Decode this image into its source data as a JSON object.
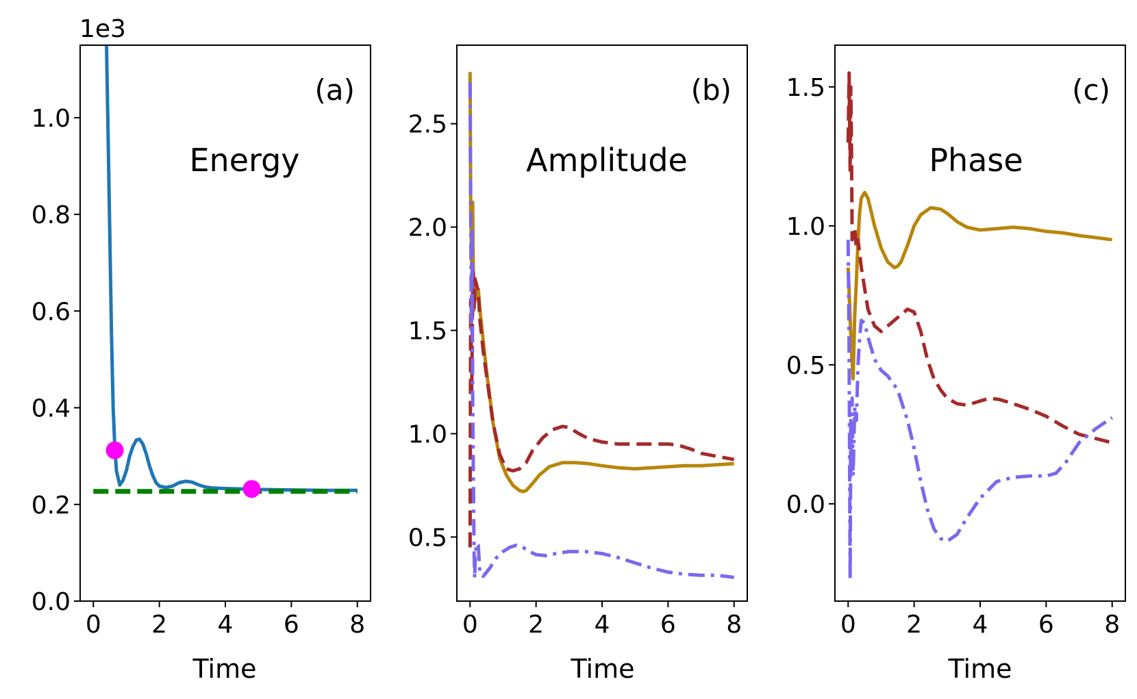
{
  "chart_data": [
    {
      "type": "line",
      "tag": "(a)",
      "name": "Energy",
      "xlabel": "Time",
      "ylabel": "",
      "offset": "1e3",
      "xlim": [
        -0.4,
        8.4
      ],
      "ylim": [
        0,
        1.15
      ],
      "xticks": [
        0,
        2,
        4,
        6,
        8
      ],
      "xtick_labels": [
        "0",
        "2",
        "4",
        "6",
        "8"
      ],
      "yticks": [
        0,
        0.2,
        0.4,
        0.6,
        0.8,
        1.0
      ],
      "ytick_labels": [
        "0.0",
        "0.2",
        "0.4",
        "0.6",
        "0.8",
        "1.0"
      ],
      "colors": {
        "energy": "#1f77b4",
        "reference": "#008000",
        "markers": "#ff00ff"
      },
      "series": [
        {
          "name": "energy",
          "style": "solid",
          "color": "#1f77b4",
          "x": [
            0.4,
            0.45,
            0.5,
            0.55,
            0.6,
            0.65,
            0.7,
            0.8,
            0.9,
            1.0,
            1.1,
            1.2,
            1.3,
            1.4,
            1.5,
            1.6,
            1.7,
            1.8,
            1.9,
            2.0,
            2.2,
            2.4,
            2.6,
            2.8,
            3.0,
            3.2,
            3.4,
            3.6,
            4.0,
            4.5,
            5.0,
            6.0,
            7.0,
            8.0
          ],
          "y": [
            1.15,
            0.95,
            0.75,
            0.55,
            0.4,
            0.32,
            0.27,
            0.24,
            0.25,
            0.27,
            0.3,
            0.32,
            0.333,
            0.335,
            0.325,
            0.305,
            0.28,
            0.26,
            0.245,
            0.238,
            0.235,
            0.238,
            0.245,
            0.248,
            0.246,
            0.24,
            0.236,
            0.234,
            0.233,
            0.232,
            0.231,
            0.23,
            0.229,
            0.229
          ]
        },
        {
          "name": "reference",
          "style": "dashed",
          "color": "#008000",
          "x": [
            0.0,
            8.0
          ],
          "y": [
            0.227,
            0.227
          ]
        }
      ],
      "markers": [
        {
          "x": 0.65,
          "y": 0.312
        },
        {
          "x": 4.8,
          "y": 0.232
        }
      ]
    },
    {
      "type": "line",
      "tag": "(b)",
      "name": "Amplitude",
      "xlabel": "Time",
      "ylabel": "",
      "xlim": [
        -0.4,
        8.4
      ],
      "ylim": [
        0.19,
        2.88
      ],
      "xticks": [
        0,
        2,
        4,
        6,
        8
      ],
      "xtick_labels": [
        "0",
        "2",
        "4",
        "6",
        "8"
      ],
      "yticks": [
        0.5,
        1.0,
        1.5,
        2.0,
        2.5
      ],
      "ytick_labels": [
        "0.5",
        "1.0",
        "1.5",
        "2.0",
        "2.5"
      ],
      "colors": {
        "gold": "#b8860b",
        "red": "#a52a2a",
        "purple": "#7b68ee"
      },
      "series": [
        {
          "name": "gold",
          "style": "solid",
          "color": "#b8860b",
          "x": [
            0.0,
            0.02,
            0.05,
            0.08,
            0.1,
            0.12,
            0.15,
            0.2,
            0.25,
            0.3,
            0.4,
            0.5,
            0.7,
            0.9,
            1.1,
            1.3,
            1.5,
            1.6,
            1.7,
            1.9,
            2.1,
            2.4,
            2.8,
            3.2,
            3.6,
            4.0,
            4.5,
            5.0,
            5.5,
            6.0,
            6.5,
            7.0,
            7.5,
            8.0
          ],
          "y": [
            2.75,
            2.1,
            1.8,
            2.12,
            1.75,
            1.6,
            1.68,
            1.65,
            1.7,
            1.6,
            1.45,
            1.3,
            1.05,
            0.88,
            0.8,
            0.75,
            0.725,
            0.72,
            0.725,
            0.76,
            0.8,
            0.84,
            0.86,
            0.86,
            0.855,
            0.845,
            0.835,
            0.83,
            0.835,
            0.84,
            0.845,
            0.845,
            0.85,
            0.855
          ]
        },
        {
          "name": "red",
          "style": "dashed",
          "color": "#a52a2a",
          "x": [
            0.0,
            0.02,
            0.05,
            0.08,
            0.1,
            0.12,
            0.15,
            0.2,
            0.25,
            0.3,
            0.4,
            0.5,
            0.7,
            0.9,
            1.1,
            1.3,
            1.5,
            1.7,
            1.9,
            2.2,
            2.5,
            2.8,
            3.0,
            3.3,
            3.6,
            4.0,
            4.5,
            5.0,
            5.5,
            6.0,
            6.3,
            6.7,
            7.0,
            7.5,
            8.0
          ],
          "y": [
            0.45,
            1.65,
            1.2,
            1.7,
            1.78,
            1.6,
            1.75,
            1.72,
            1.68,
            1.55,
            1.4,
            1.28,
            1.05,
            0.9,
            0.83,
            0.82,
            0.83,
            0.86,
            0.92,
            0.98,
            1.02,
            1.035,
            1.03,
            1.0,
            0.975,
            0.96,
            0.95,
            0.95,
            0.95,
            0.95,
            0.945,
            0.925,
            0.905,
            0.89,
            0.875
          ]
        },
        {
          "name": "purple",
          "style": "dashdot",
          "color": "#7b68ee",
          "x": [
            0.0,
            0.02,
            0.04,
            0.06,
            0.08,
            0.1,
            0.12,
            0.14,
            0.16,
            0.2,
            0.25,
            0.3,
            0.4,
            0.6,
            0.8,
            1.0,
            1.2,
            1.4,
            1.6,
            1.8,
            2.0,
            2.3,
            2.6,
            3.0,
            3.5,
            4.0,
            4.5,
            5.0,
            5.5,
            6.0,
            6.5,
            7.0,
            7.5,
            8.0
          ],
          "y": [
            2.7,
            2.1,
            1.5,
            2.0,
            1.2,
            0.8,
            0.45,
            0.3,
            0.42,
            0.47,
            0.46,
            0.32,
            0.31,
            0.35,
            0.4,
            0.43,
            0.45,
            0.46,
            0.45,
            0.43,
            0.415,
            0.41,
            0.42,
            0.43,
            0.43,
            0.42,
            0.4,
            0.375,
            0.35,
            0.33,
            0.32,
            0.315,
            0.315,
            0.305
          ]
        }
      ]
    },
    {
      "type": "line",
      "tag": "(c)",
      "name": "Phase",
      "xlabel": "Time",
      "ylabel": "",
      "xlim": [
        -0.4,
        8.4
      ],
      "ylim": [
        -0.35,
        1.65
      ],
      "xticks": [
        0,
        2,
        4,
        6,
        8
      ],
      "xtick_labels": [
        "0",
        "2",
        "4",
        "6",
        "8"
      ],
      "yticks": [
        0.0,
        0.5,
        1.0,
        1.5
      ],
      "ytick_labels": [
        "0.0",
        "0.5",
        "1.0",
        "1.5"
      ],
      "colors": {
        "gold": "#b8860b",
        "red": "#a52a2a",
        "purple": "#7b68ee"
      },
      "series": [
        {
          "name": "gold",
          "style": "solid",
          "color": "#b8860b",
          "x": [
            0.0,
            0.05,
            0.1,
            0.15,
            0.2,
            0.25,
            0.3,
            0.35,
            0.4,
            0.5,
            0.6,
            0.8,
            1.0,
            1.2,
            1.4,
            1.5,
            1.6,
            1.8,
            2.0,
            2.2,
            2.5,
            2.8,
            3.0,
            3.3,
            3.6,
            4.0,
            4.5,
            5.0,
            5.5,
            6.0,
            6.5,
            7.0,
            7.5,
            8.0
          ],
          "y": [
            0.85,
            0.7,
            0.55,
            0.45,
            0.68,
            0.8,
            0.95,
            1.05,
            1.1,
            1.12,
            1.1,
            1.0,
            0.92,
            0.87,
            0.85,
            0.855,
            0.87,
            0.93,
            1.0,
            1.04,
            1.065,
            1.06,
            1.045,
            1.015,
            0.995,
            0.985,
            0.99,
            0.995,
            0.99,
            0.98,
            0.975,
            0.965,
            0.958,
            0.95
          ]
        },
        {
          "name": "red",
          "style": "dashed",
          "color": "#a52a2a",
          "x": [
            0.0,
            0.03,
            0.06,
            0.08,
            0.1,
            0.12,
            0.15,
            0.2,
            0.25,
            0.3,
            0.4,
            0.6,
            0.8,
            1.0,
            1.2,
            1.5,
            1.8,
            2.0,
            2.2,
            2.4,
            2.6,
            2.8,
            3.0,
            3.3,
            3.6,
            4.0,
            4.3,
            4.6,
            5.0,
            5.5,
            6.0,
            6.5,
            7.0,
            7.5,
            8.0
          ],
          "y": [
            1.3,
            1.55,
            1.2,
            1.5,
            1.3,
            0.95,
            0.98,
            0.99,
            0.92,
            0.95,
            0.85,
            0.7,
            0.64,
            0.62,
            0.64,
            0.67,
            0.7,
            0.69,
            0.62,
            0.52,
            0.45,
            0.41,
            0.38,
            0.36,
            0.355,
            0.37,
            0.38,
            0.375,
            0.36,
            0.34,
            0.315,
            0.28,
            0.25,
            0.235,
            0.22
          ]
        },
        {
          "name": "purple",
          "style": "dashdot",
          "color": "#7b68ee",
          "x": [
            0.0,
            0.03,
            0.06,
            0.08,
            0.1,
            0.12,
            0.15,
            0.2,
            0.25,
            0.3,
            0.35,
            0.4,
            0.5,
            0.6,
            0.8,
            1.0,
            1.2,
            1.5,
            1.8,
            2.0,
            2.2,
            2.4,
            2.6,
            2.8,
            3.0,
            3.3,
            3.6,
            4.0,
            4.5,
            5.0,
            5.5,
            6.0,
            6.3,
            6.6,
            7.0,
            7.5,
            8.0
          ],
          "y": [
            0.95,
            0.55,
            -0.27,
            0.3,
            0.12,
            0.38,
            0.1,
            0.35,
            0.3,
            0.5,
            0.6,
            0.66,
            0.65,
            0.6,
            0.52,
            0.48,
            0.46,
            0.41,
            0.3,
            0.2,
            0.08,
            -0.02,
            -0.09,
            -0.125,
            -0.135,
            -0.11,
            -0.05,
            0.02,
            0.08,
            0.095,
            0.1,
            0.1,
            0.11,
            0.15,
            0.22,
            0.27,
            0.31
          ]
        }
      ]
    }
  ]
}
